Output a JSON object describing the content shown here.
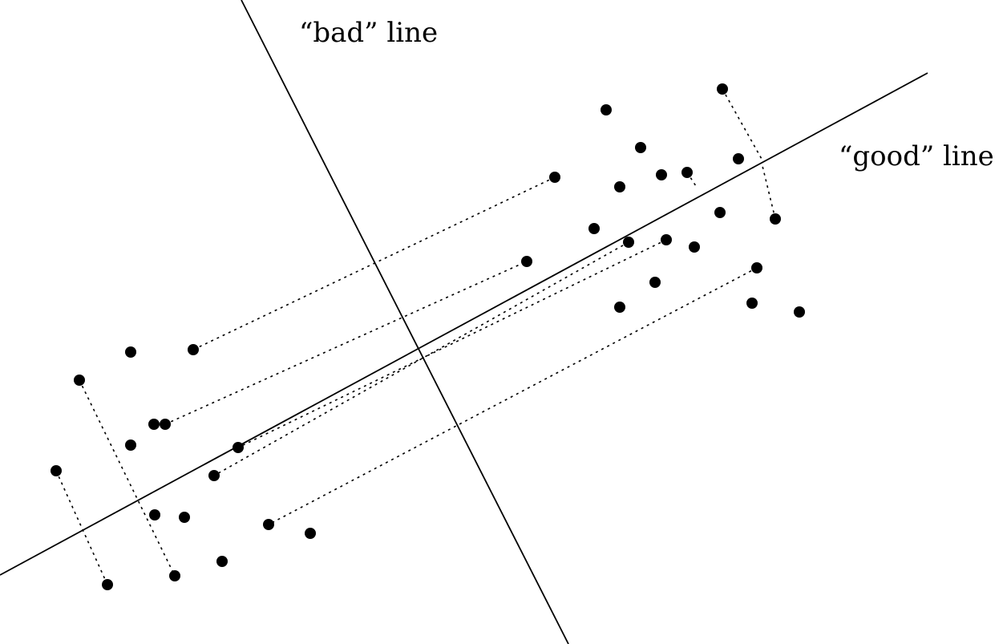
{
  "labels": {
    "bad_line": "“bad” line",
    "good_line": "“good” line"
  },
  "colors": {
    "ink": "#000000",
    "background": "#ffffff"
  }
}
